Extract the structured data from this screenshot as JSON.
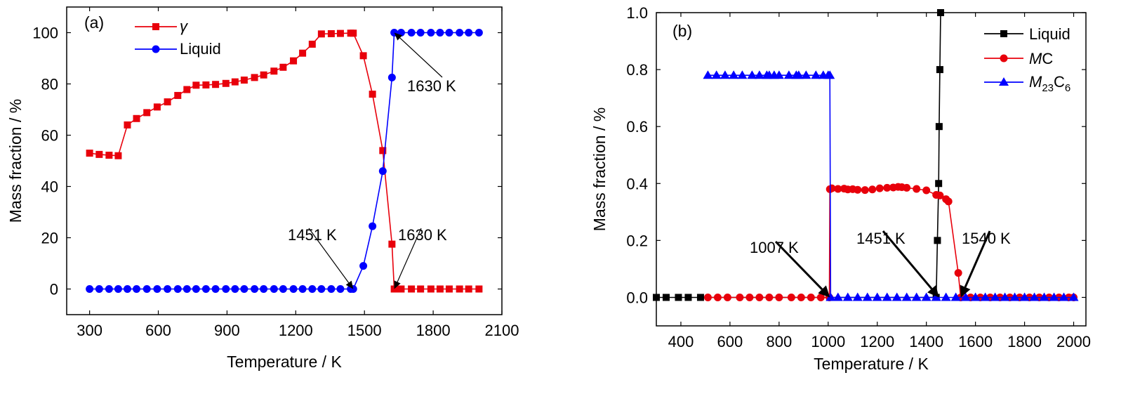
{
  "chart_data": [
    {
      "type": "line",
      "panel_label": "(a)",
      "xlabel": "Temperature / K",
      "ylabel": "Mass fraction / %",
      "xlim": [
        200,
        2100
      ],
      "ylim": [
        -10,
        110
      ],
      "xticks": [
        300,
        600,
        900,
        1200,
        1500,
        1800,
        2100
      ],
      "yticks": [
        0,
        20,
        40,
        60,
        80,
        100
      ],
      "legend_position": "top-center",
      "series": [
        {
          "name": "γ",
          "color": "#e8000b",
          "marker": "square",
          "x": [
            300,
            342,
            385,
            425,
            465,
            505,
            550,
            595,
            640,
            685,
            725,
            765,
            808,
            850,
            895,
            935,
            975,
            1020,
            1060,
            1105,
            1145,
            1190,
            1230,
            1272,
            1312,
            1355,
            1395,
            1440,
            1451,
            1495,
            1535,
            1580,
            1620,
            1630,
            1645,
            1660,
            1705,
            1745,
            1790,
            1830,
            1870,
            1915,
            1955,
            2000
          ],
          "y": [
            53,
            52.5,
            52.2,
            52,
            64,
            66.5,
            68.8,
            71,
            73,
            75.5,
            77.8,
            79.5,
            79.6,
            79.8,
            80.2,
            80.8,
            81.5,
            82.5,
            83.5,
            85,
            86.5,
            89,
            92,
            95.5,
            99.5,
            99.6,
            99.7,
            99.8,
            99.8,
            91,
            76,
            54,
            17.5,
            0,
            0,
            0,
            0,
            0,
            0,
            0,
            0,
            0,
            0,
            0
          ]
        },
        {
          "name": "Liquid",
          "color": "#0000ff",
          "marker": "circle",
          "x": [
            300,
            342,
            385,
            425,
            465,
            505,
            550,
            595,
            640,
            685,
            725,
            765,
            808,
            850,
            895,
            935,
            975,
            1020,
            1060,
            1105,
            1145,
            1190,
            1230,
            1272,
            1312,
            1355,
            1395,
            1440,
            1451,
            1495,
            1535,
            1580,
            1620,
            1630,
            1660,
            1705,
            1745,
            1790,
            1830,
            1870,
            1915,
            1955,
            2000
          ],
          "y": [
            0,
            0,
            0,
            0,
            0,
            0,
            0,
            0,
            0,
            0,
            0,
            0,
            0,
            0,
            0,
            0,
            0,
            0,
            0,
            0,
            0,
            0,
            0,
            0,
            0,
            0,
            0,
            0,
            0,
            9,
            24.5,
            46,
            82.5,
            100,
            100,
            100,
            100,
            100,
            100,
            100,
            100,
            100,
            100
          ]
        }
      ],
      "annotations": [
        {
          "text": "1630 K",
          "arrow_to": [
            1630,
            100
          ]
        },
        {
          "text": "1451 K",
          "arrow_to": [
            1451,
            0
          ]
        },
        {
          "text": "1630 K",
          "arrow_to": [
            1630,
            0
          ]
        }
      ]
    },
    {
      "type": "line",
      "panel_label": "(b)",
      "xlabel": "Temperature / K",
      "ylabel": "Mass fraction / %",
      "xlim": [
        300,
        2050
      ],
      "ylim": [
        -0.1,
        1.0
      ],
      "xticks": [
        400,
        600,
        800,
        1000,
        1200,
        1400,
        1600,
        1800,
        2000
      ],
      "yticks": [
        0.0,
        0.2,
        0.4,
        0.6,
        0.8,
        1.0
      ],
      "legend_position": "top-right",
      "series": [
        {
          "name": "Liquid",
          "color": "#000000",
          "marker": "square",
          "x": [
            300,
            340,
            390,
            430,
            480,
            1440,
            1445,
            1450,
            1452,
            1455,
            1458
          ],
          "y": [
            0,
            0,
            0,
            0,
            0,
            0,
            0.2,
            0.4,
            0.6,
            0.8,
            1.0
          ]
        },
        {
          "name": "MC",
          "color": "#e8000b",
          "marker": "circle",
          "x": [
            510,
            550,
            590,
            640,
            680,
            720,
            760,
            800,
            850,
            890,
            930,
            970,
            1005,
            1007,
            1015,
            1040,
            1065,
            1080,
            1100,
            1120,
            1150,
            1180,
            1210,
            1240,
            1265,
            1285,
            1300,
            1320,
            1360,
            1400,
            1440,
            1455,
            1480,
            1490,
            1530,
            1540,
            1580,
            1620,
            1660,
            1700,
            1740,
            1780,
            1820,
            1860,
            1900,
            1940,
            1980,
            2000
          ],
          "y": [
            0,
            0,
            0,
            0,
            0,
            0,
            0,
            0,
            0,
            0,
            0,
            0,
            0,
            0.38,
            0.383,
            0.381,
            0.382,
            0.379,
            0.38,
            0.378,
            0.377,
            0.379,
            0.383,
            0.385,
            0.386,
            0.388,
            0.387,
            0.385,
            0.381,
            0.376,
            0.36,
            0.358,
            0.345,
            0.337,
            0.086,
            0,
            0,
            0,
            0,
            0,
            0,
            0,
            0,
            0,
            0,
            0,
            0,
            0
          ]
        },
        {
          "name": "M23C6",
          "legend_label_parts": {
            "base": "M",
            "sub1": "23",
            "mid": "C",
            "sub2": "6"
          },
          "color": "#0000ff",
          "marker": "triangle",
          "x": [
            510,
            545,
            580,
            615,
            650,
            690,
            720,
            750,
            760,
            780,
            800,
            840,
            870,
            880,
            910,
            950,
            980,
            1000,
            1007,
            1010,
            1040,
            1080,
            1120,
            1160,
            1200,
            1240,
            1280,
            1320,
            1360,
            1400,
            1440,
            1480,
            1520,
            1560,
            1600,
            1640,
            1680,
            1720,
            1760,
            1800,
            1840,
            1880,
            1920,
            1960,
            2000
          ],
          "y": [
            0.78,
            0.78,
            0.78,
            0.78,
            0.78,
            0.78,
            0.78,
            0.78,
            0.78,
            0.78,
            0.78,
            0.78,
            0.78,
            0.78,
            0.78,
            0.78,
            0.78,
            0.78,
            0.78,
            0,
            0,
            0,
            0,
            0,
            0,
            0,
            0,
            0,
            0,
            0,
            0,
            0,
            0,
            0,
            0,
            0,
            0,
            0,
            0,
            0,
            0,
            0,
            0,
            0,
            0
          ]
        }
      ],
      "annotations": [
        {
          "text": "1007 K",
          "arrow_to": [
            1007,
            0
          ]
        },
        {
          "text": "1451 K",
          "arrow_to": [
            1451,
            0
          ]
        },
        {
          "text": "1540 K",
          "arrow_to": [
            1540,
            0
          ]
        }
      ]
    }
  ]
}
